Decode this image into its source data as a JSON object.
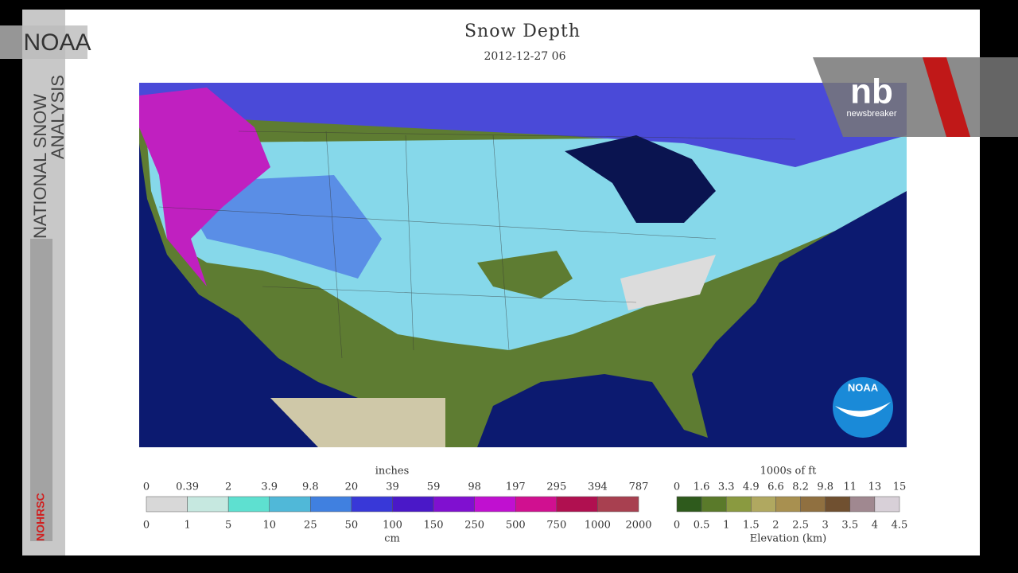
{
  "overlay": {
    "corner_label": "NOAA",
    "side_title": [
      "NATIONAL SNOW",
      "ANALYSIS"
    ],
    "side_footer": "NOHRSC",
    "brand": "nb",
    "brand_name": "newsbreaker",
    "logo": "NOAA"
  },
  "map": {
    "title": "Snow Depth",
    "timestamp": "2012-12-27 06"
  },
  "snow_legend": {
    "unit_top": "inches",
    "labels_top": [
      "0",
      "0.39",
      "2",
      "3.9",
      "9.8",
      "20",
      "39",
      "59",
      "98",
      "197",
      "295",
      "394",
      "787"
    ],
    "colors": [
      "#d8d8d8",
      "#c6e8e0",
      "#5ee0d0",
      "#50b8d8",
      "#4080e0",
      "#3838d8",
      "#4a18c8",
      "#8010d0",
      "#c010d0",
      "#d01090",
      "#b01050",
      "#a84050"
    ],
    "labels_bottom": [
      "0",
      "1",
      "5",
      "10",
      "25",
      "50",
      "100",
      "150",
      "250",
      "500",
      "750",
      "1000",
      "2000"
    ],
    "unit_bottom": "cm"
  },
  "elevation_legend": {
    "unit_top": "1000s of ft",
    "labels_top": [
      "0",
      "1.6",
      "3.3",
      "4.9",
      "6.6",
      "8.2",
      "9.8",
      "11",
      "13",
      "15"
    ],
    "colors": [
      "#2e5a1c",
      "#5a7a2a",
      "#8a9a40",
      "#b0a860",
      "#a89050",
      "#907040",
      "#705030",
      "#a08890",
      "#d8d0d8"
    ],
    "labels_bottom": [
      "0",
      "0.5",
      "1",
      "1.5",
      "2",
      "2.5",
      "3",
      "3.5",
      "4",
      "4.5"
    ],
    "unit_bottom": "Elevation (km)"
  }
}
